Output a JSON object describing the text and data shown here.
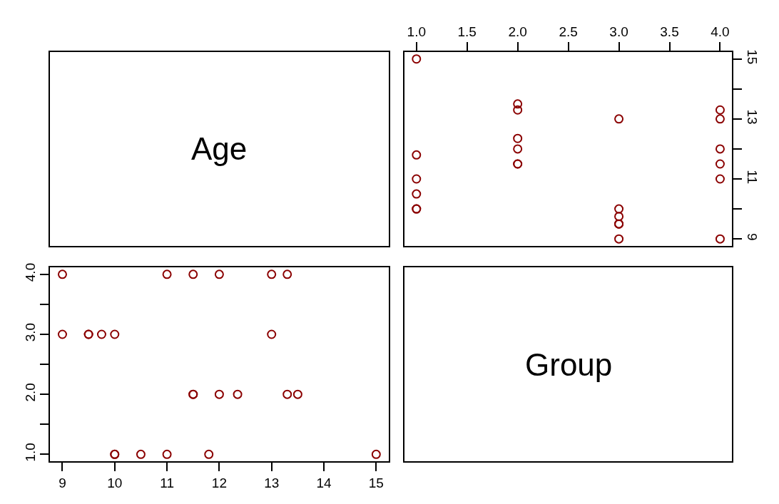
{
  "chart_data": [
    {
      "type": "other",
      "title": "Age"
    },
    {
      "type": "scatter",
      "xlim": [
        0.88,
        4.12
      ],
      "xticks": [
        {
          "value": 1,
          "label": "1.0"
        },
        {
          "value": 1.5,
          "label": "1.5"
        },
        {
          "value": 2,
          "label": "2.0"
        },
        {
          "value": 2.5,
          "label": "2.5"
        },
        {
          "value": 3,
          "label": "3.0"
        },
        {
          "value": 3.5,
          "label": "3.5"
        },
        {
          "value": 4,
          "label": "4.0"
        }
      ],
      "ylim": [
        8.76,
        15.24
      ],
      "yticks": [
        9,
        {
          "value": 10,
          "label": null
        },
        11,
        {
          "value": 12,
          "label": null
        },
        13,
        {
          "value": 14,
          "label": null
        },
        15
      ],
      "marker": "circle",
      "grid": false,
      "series": [
        {
          "color": "#8b0000",
          "x": [
            1,
            1,
            1,
            1,
            1,
            1,
            2,
            2,
            2,
            2,
            2,
            2,
            3,
            3,
            3,
            3,
            3,
            3,
            4,
            4,
            4,
            4,
            4,
            4
          ],
          "values": [
            10,
            10,
            10.5,
            11,
            11.8,
            15,
            11.5,
            11.5,
            12,
            12.35,
            13.3,
            13.5,
            9,
            9.5,
            9.5,
            9.75,
            10,
            13,
            9,
            11,
            11.5,
            12,
            13,
            13.3
          ]
        }
      ]
    },
    {
      "type": "scatter",
      "xlim": [
        8.76,
        15.24
      ],
      "xticks": [
        9,
        10,
        11,
        12,
        13,
        14,
        15
      ],
      "ylim": [
        0.88,
        4.12
      ],
      "yticks": [
        {
          "value": 1,
          "label": "1.0"
        },
        {
          "value": 1.5,
          "label": null
        },
        {
          "value": 2,
          "label": "2.0"
        },
        {
          "value": 2.5,
          "label": null
        },
        {
          "value": 3,
          "label": "3.0"
        },
        {
          "value": 3.5,
          "label": null
        },
        {
          "value": 4,
          "label": "4.0"
        }
      ],
      "marker": "circle",
      "grid": false,
      "series": [
        {
          "color": "#8b0000",
          "x": [
            10,
            10,
            10.5,
            11,
            11.8,
            15,
            11.5,
            11.5,
            12,
            12.35,
            13.3,
            13.5,
            9,
            9.5,
            9.5,
            9.75,
            10,
            13,
            9,
            11,
            11.5,
            12,
            13,
            13.3
          ],
          "values": [
            1,
            1,
            1,
            1,
            1,
            1,
            2,
            2,
            2,
            2,
            2,
            2,
            3,
            3,
            3,
            3,
            3,
            3,
            4,
            4,
            4,
            4,
            4,
            4
          ]
        }
      ]
    },
    {
      "type": "other",
      "title": "Group"
    }
  ]
}
